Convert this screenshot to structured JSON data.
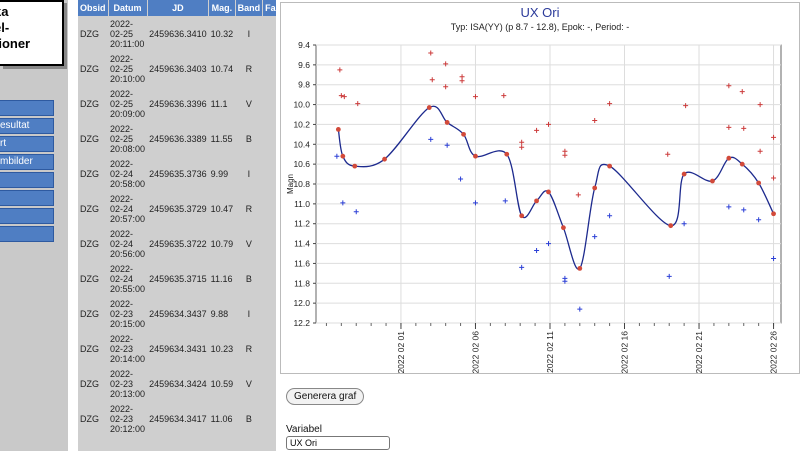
{
  "sidebar": {
    "title_lines": [
      "ka",
      "el-",
      "tioner"
    ],
    "items": [
      "",
      "esultat",
      "rt",
      "mbilder",
      "",
      "",
      "",
      ""
    ]
  },
  "table": {
    "headers": [
      "Obsid",
      "Datum",
      "JD",
      "Mag.",
      "Band",
      "Fas"
    ],
    "rows": [
      {
        "obsid": "DZG",
        "date": [
          "2022-",
          "02-25",
          "20:11:00"
        ],
        "jd": "2459636.3410",
        "mag": "10.32",
        "band": "I"
      },
      {
        "obsid": "DZG",
        "date": [
          "2022-",
          "02-25",
          "20:10:00"
        ],
        "jd": "2459636.3403",
        "mag": "10.74",
        "band": "R"
      },
      {
        "obsid": "DZG",
        "date": [
          "2022-",
          "02-25",
          "20:09:00"
        ],
        "jd": "2459636.3396",
        "mag": "11.1",
        "band": "V"
      },
      {
        "obsid": "DZG",
        "date": [
          "2022-",
          "02-25",
          "20:08:00"
        ],
        "jd": "2459636.3389",
        "mag": "11.55",
        "band": "B"
      },
      {
        "obsid": "DZG",
        "date": [
          "2022-",
          "02-24",
          "20:58:00"
        ],
        "jd": "2459635.3736",
        "mag": "9.99",
        "band": "I"
      },
      {
        "obsid": "DZG",
        "date": [
          "2022-",
          "02-24",
          "20:57:00"
        ],
        "jd": "2459635.3729",
        "mag": "10.47",
        "band": "R"
      },
      {
        "obsid": "DZG",
        "date": [
          "2022-",
          "02-24",
          "20:56:00"
        ],
        "jd": "2459635.3722",
        "mag": "10.79",
        "band": "V"
      },
      {
        "obsid": "DZG",
        "date": [
          "2022-",
          "02-24",
          "20:55:00"
        ],
        "jd": "2459635.3715",
        "mag": "11.16",
        "band": "B"
      },
      {
        "obsid": "DZG",
        "date": [
          "2022-",
          "02-23",
          "20:15:00"
        ],
        "jd": "2459634.3437",
        "mag": "9.88",
        "band": "I"
      },
      {
        "obsid": "DZG",
        "date": [
          "2022-",
          "02-23",
          "20:14:00"
        ],
        "jd": "2459634.3431",
        "mag": "10.23",
        "band": "R"
      },
      {
        "obsid": "DZG",
        "date": [
          "2022-",
          "02-23",
          "20:13:00"
        ],
        "jd": "2459634.3424",
        "mag": "10.59",
        "band": "V"
      },
      {
        "obsid": "DZG",
        "date": [
          "2022-",
          "02-23",
          "20:12:00"
        ],
        "jd": "2459634.3417",
        "mag": "11.06",
        "band": "B"
      }
    ]
  },
  "chart_data": {
    "type": "scatter",
    "title": "UX Ori",
    "subtitle": "Typ: ISA(YY) (p 8.7 - 12.8), Epok: -, Period: -",
    "ylabel": "Magn",
    "xlabel": "",
    "ylim": [
      12.2,
      9.4
    ],
    "y_inverted": true,
    "xlim": [
      -4.7,
      26.5
    ],
    "x_day_zero": "2022-01-31",
    "y_ticks": [
      "9.4",
      "9.6",
      "9.8",
      "10.0",
      "10.2",
      "10.4",
      "10.6",
      "10.8",
      "11.0",
      "11.2",
      "11.4",
      "11.6",
      "11.8",
      "12.0",
      "12.2"
    ],
    "x_ticks": [
      {
        "x": 1,
        "label": "2022 02 01"
      },
      {
        "x": 6,
        "label": "2022 02 06"
      },
      {
        "x": 11,
        "label": "2022 02 11"
      },
      {
        "x": 16,
        "label": "2022 02 16"
      },
      {
        "x": 21,
        "label": "2022 02 21"
      },
      {
        "x": 26,
        "label": "2022 02 26"
      }
    ],
    "grid": true,
    "colors": {
      "v": "#d24a3a",
      "r": "#cc3a3a",
      "b": "#2b3fd6",
      "curve": "#1d2a8e",
      "title": "#2b3a9a"
    },
    "series": [
      {
        "name": "V",
        "marker": "dot",
        "points": [
          [
            -3.2,
            10.25
          ],
          [
            -2.9,
            10.52
          ],
          [
            -2.1,
            10.62
          ],
          [
            -0.1,
            10.55
          ],
          [
            2.9,
            10.03
          ],
          [
            4.1,
            10.18
          ],
          [
            5.2,
            10.3
          ],
          [
            6.0,
            10.52
          ],
          [
            8.1,
            10.5
          ],
          [
            9.1,
            11.12
          ],
          [
            10.1,
            10.97
          ],
          [
            10.9,
            10.88
          ],
          [
            11.9,
            11.24
          ],
          [
            13.0,
            11.65
          ],
          [
            14.0,
            10.84
          ],
          [
            15.0,
            10.62
          ],
          [
            19.1,
            11.22
          ],
          [
            20.0,
            10.7
          ],
          [
            21.9,
            10.77
          ],
          [
            23.0,
            10.54
          ],
          [
            23.9,
            10.6
          ],
          [
            25.0,
            10.79
          ],
          [
            26.0,
            11.1
          ]
        ]
      },
      {
        "name": "R",
        "marker": "plus",
        "points": [
          [
            -3.1,
            9.65
          ],
          [
            -3.0,
            9.91
          ],
          [
            -2.8,
            9.92
          ],
          [
            -1.9,
            9.99
          ],
          [
            3.0,
            9.48
          ],
          [
            3.1,
            9.75
          ],
          [
            4.0,
            9.59
          ],
          [
            4.0,
            9.82
          ],
          [
            5.1,
            9.72
          ],
          [
            5.1,
            9.76
          ],
          [
            6.0,
            9.92
          ],
          [
            7.9,
            9.91
          ],
          [
            9.1,
            10.38
          ],
          [
            9.1,
            10.43
          ],
          [
            10.1,
            10.26
          ],
          [
            10.9,
            10.2
          ],
          [
            12.0,
            10.47
          ],
          [
            12.0,
            10.51
          ],
          [
            12.9,
            10.91
          ],
          [
            14.0,
            10.16
          ],
          [
            15.0,
            9.99
          ],
          [
            18.9,
            10.5
          ],
          [
            20.1,
            10.01
          ],
          [
            23.0,
            9.81
          ],
          [
            23.0,
            10.23
          ],
          [
            23.9,
            9.87
          ],
          [
            24.0,
            10.24
          ],
          [
            25.1,
            10.0
          ],
          [
            25.1,
            10.47
          ],
          [
            26.0,
            10.33
          ],
          [
            26.0,
            10.74
          ]
        ]
      },
      {
        "name": "B",
        "marker": "plus",
        "points": [
          [
            -3.3,
            10.52
          ],
          [
            -2.9,
            10.99
          ],
          [
            -2.0,
            11.08
          ],
          [
            3.0,
            10.35
          ],
          [
            4.1,
            10.41
          ],
          [
            5.0,
            10.75
          ],
          [
            6.0,
            10.99
          ],
          [
            8.0,
            10.97
          ],
          [
            9.1,
            11.64
          ],
          [
            10.1,
            11.47
          ],
          [
            10.9,
            11.4
          ],
          [
            12.0,
            11.75
          ],
          [
            12.0,
            11.78
          ],
          [
            13.0,
            12.06
          ],
          [
            14.0,
            11.33
          ],
          [
            15.0,
            11.12
          ],
          [
            19.0,
            11.73
          ],
          [
            20.0,
            11.2
          ],
          [
            23.0,
            11.03
          ],
          [
            24.0,
            11.06
          ],
          [
            25.0,
            11.16
          ],
          [
            26.0,
            11.55
          ]
        ]
      }
    ]
  },
  "controls": {
    "generate_button": "Generera graf",
    "variable_label": "Variabel",
    "variable_value": "UX Ori"
  }
}
